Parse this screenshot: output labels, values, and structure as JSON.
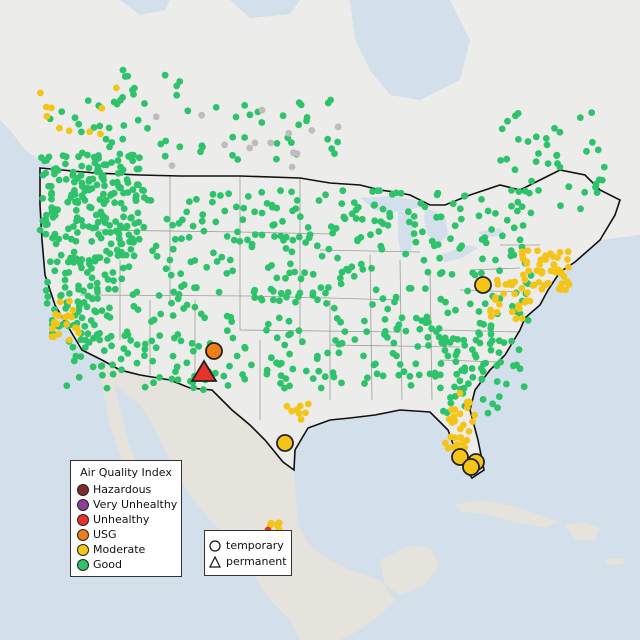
{
  "legend": {
    "title": "Air Quality Index",
    "categories": [
      {
        "label": "Hazardous",
        "color": "#7e2b25"
      },
      {
        "label": "Very Unhealthy",
        "color": "#8f3f97"
      },
      {
        "label": "Unhealthy",
        "color": "#e5332a"
      },
      {
        "label": "USG",
        "color": "#ee7d1a"
      },
      {
        "label": "Moderate",
        "color": "#f4c518"
      },
      {
        "label": "Good",
        "color": "#2ec36a"
      }
    ]
  },
  "monitor_types": {
    "temporary": {
      "label": "temporary",
      "symbol": "circle-icon"
    },
    "permanent": {
      "label": "permanent",
      "symbol": "triangle-icon"
    }
  },
  "colors": {
    "ocean": "#d3dfea",
    "land": "#ececea",
    "land_alt": "#e6e2dc",
    "us_border": "#111111",
    "state_border": "#9c9c9c",
    "no_data": "#bdbdbd",
    "marker_outline": "#333333"
  }
}
